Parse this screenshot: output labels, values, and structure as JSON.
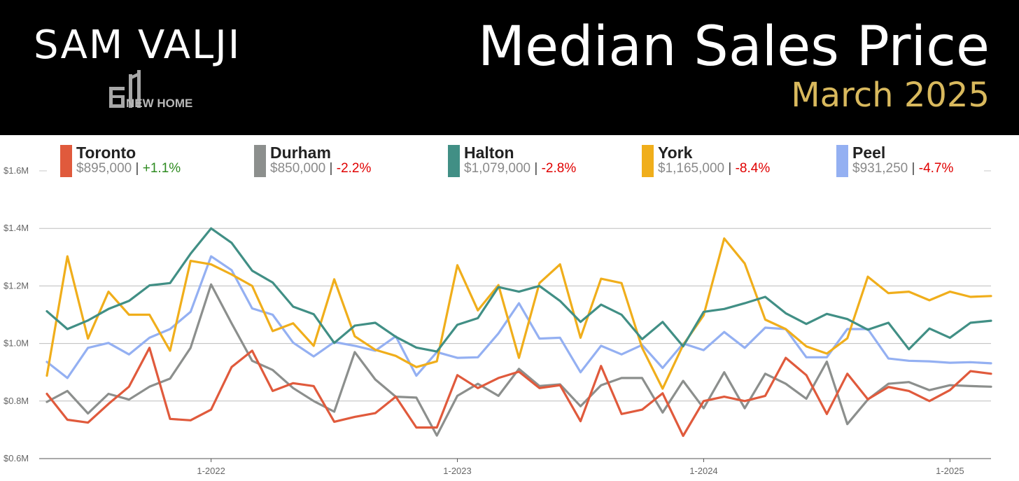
{
  "header": {
    "brand": "SAM VALJI",
    "brand_sub": "NEW HOME",
    "title": "Median Sales Price",
    "subtitle": "March 2025"
  },
  "legend": [
    {
      "name": "Toronto",
      "value": "$895,000",
      "sep": "|",
      "change": "+1.1%",
      "color": "#e05a3c",
      "change_color": "#2e8b20"
    },
    {
      "name": "Durham",
      "value": "$850,000",
      "sep": "|",
      "change": "-2.2%",
      "color": "#8c8f8d",
      "change_color": "#e00000"
    },
    {
      "name": "Halton",
      "value": "$1,079,000",
      "sep": "|",
      "change": "-2.8%",
      "color": "#418f85",
      "change_color": "#e00000"
    },
    {
      "name": "York",
      "value": "$1,165,000",
      "sep": "|",
      "change": "-8.4%",
      "color": "#f0ae1b",
      "change_color": "#e00000"
    },
    {
      "name": "Peel",
      "value": "$931,250",
      "sep": "|",
      "change": "-4.7%",
      "color": "#94b0f2",
      "change_color": "#e00000"
    }
  ],
  "chart_data": {
    "type": "line",
    "title": "Median Sales Price",
    "subtitle": "March 2025",
    "ylim": [
      600000,
      1600000
    ],
    "y_ticks": [
      {
        "value": 600000,
        "label": "$0.6M"
      },
      {
        "value": 800000,
        "label": "$0.8M"
      },
      {
        "value": 1000000,
        "label": "$1.0M"
      },
      {
        "value": 1200000,
        "label": "$1.2M"
      },
      {
        "value": 1400000,
        "label": "$1.4M"
      },
      {
        "value": 1600000,
        "label": "$1.6M"
      }
    ],
    "x": [
      "2021-05",
      "2021-06",
      "2021-07",
      "2021-08",
      "2021-09",
      "2021-10",
      "2021-11",
      "2021-12",
      "2022-01",
      "2022-02",
      "2022-03",
      "2022-04",
      "2022-05",
      "2022-06",
      "2022-07",
      "2022-08",
      "2022-09",
      "2022-10",
      "2022-11",
      "2022-12",
      "2023-01",
      "2023-02",
      "2023-03",
      "2023-04",
      "2023-05",
      "2023-06",
      "2023-07",
      "2023-08",
      "2023-09",
      "2023-10",
      "2023-11",
      "2023-12",
      "2024-01",
      "2024-02",
      "2024-03",
      "2024-04",
      "2024-05",
      "2024-06",
      "2024-07",
      "2024-08",
      "2024-09",
      "2024-10",
      "2024-11",
      "2024-12",
      "2025-01",
      "2025-02",
      "2025-03"
    ],
    "x_ticks": [
      {
        "at": "2022-01",
        "label": "1-2022"
      },
      {
        "at": "2023-01",
        "label": "1-2023"
      },
      {
        "at": "2024-01",
        "label": "1-2024"
      },
      {
        "at": "2025-01",
        "label": "1-2025"
      }
    ],
    "grid": true,
    "legend_position": "top",
    "series": [
      {
        "name": "Toronto",
        "color": "#e05a3c",
        "values": [
          825000,
          735000,
          725000,
          790000,
          850000,
          985000,
          738000,
          733000,
          770000,
          918000,
          975000,
          835000,
          862000,
          852000,
          728000,
          745000,
          758000,
          815000,
          708000,
          708000,
          890000,
          845000,
          880000,
          902000,
          845000,
          855000,
          730000,
          922000,
          755000,
          770000,
          827000,
          679000,
          800000,
          815000,
          800000,
          818000,
          950000,
          890000,
          755000,
          895000,
          806000,
          849000,
          835000,
          800000,
          838000,
          904000,
          895000
        ]
      },
      {
        "name": "Durham",
        "color": "#8c8f8d",
        "values": [
          797000,
          835000,
          757000,
          825000,
          805000,
          850000,
          878000,
          985000,
          1205000,
          1070000,
          940000,
          908000,
          845000,
          800000,
          763000,
          970000,
          875000,
          815000,
          812000,
          680000,
          818000,
          860000,
          818000,
          912000,
          852000,
          858000,
          782000,
          855000,
          880000,
          880000,
          760000,
          870000,
          775000,
          900000,
          775000,
          895000,
          860000,
          808000,
          937000,
          720000,
          805000,
          860000,
          866000,
          838000,
          855000,
          852000,
          850000
        ]
      },
      {
        "name": "Halton",
        "color": "#418f85",
        "values": [
          1112000,
          1050000,
          1080000,
          1120000,
          1148000,
          1202000,
          1210000,
          1312000,
          1400000,
          1350000,
          1253000,
          1212000,
          1128000,
          1102000,
          1002000,
          1062000,
          1072000,
          1023000,
          986000,
          972000,
          1065000,
          1088000,
          1196000,
          1180000,
          1200000,
          1148000,
          1075000,
          1135000,
          1100000,
          1015000,
          1075000,
          990000,
          1110000,
          1120000,
          1140000,
          1162000,
          1105000,
          1068000,
          1103000,
          1085000,
          1048000,
          1072000,
          980000,
          1052000,
          1020000,
          1072000,
          1079000
        ]
      },
      {
        "name": "York",
        "color": "#f0ae1b",
        "values": [
          888000,
          1303000,
          1017000,
          1180000,
          1100000,
          1100000,
          975000,
          1287000,
          1275000,
          1240000,
          1200000,
          1043000,
          1070000,
          992000,
          1223000,
          1025000,
          978000,
          957000,
          918000,
          938000,
          1272000,
          1115000,
          1203000,
          950000,
          1210000,
          1275000,
          1020000,
          1225000,
          1210000,
          985000,
          843000,
          995000,
          1098000,
          1365000,
          1278000,
          1083000,
          1050000,
          990000,
          965000,
          1018000,
          1232000,
          1175000,
          1180000,
          1150000,
          1180000,
          1162000,
          1165000
        ]
      },
      {
        "name": "Peel",
        "color": "#94b0f2",
        "values": [
          936000,
          880000,
          985000,
          1002000,
          962000,
          1020000,
          1050000,
          1110000,
          1303000,
          1255000,
          1122000,
          1100000,
          1003000,
          955000,
          1005000,
          992000,
          975000,
          1025000,
          888000,
          970000,
          950000,
          952000,
          1035000,
          1140000,
          1017000,
          1020000,
          900000,
          992000,
          962000,
          995000,
          915000,
          1000000,
          977000,
          1040000,
          985000,
          1055000,
          1050000,
          952000,
          952000,
          1050000,
          1050000,
          948000,
          940000,
          938000,
          933000,
          935000,
          931250
        ]
      }
    ]
  }
}
